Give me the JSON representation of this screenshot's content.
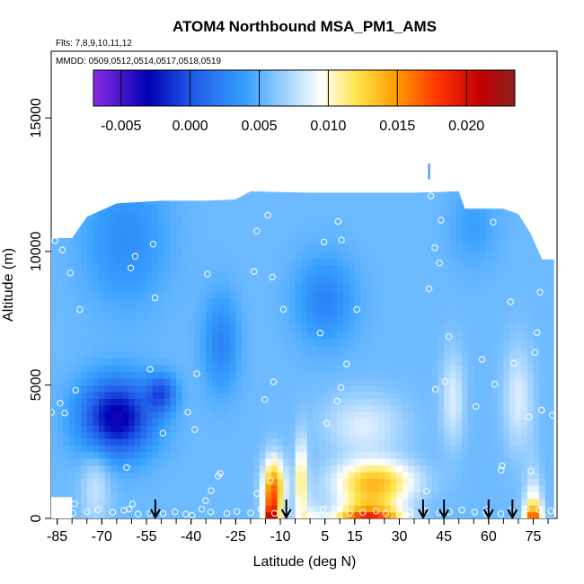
{
  "chart_data": {
    "type": "heatmap",
    "title": "ATOM4 Northbound MSA_PM1_AMS",
    "flights_note": "Flts: 7,8,9,10,11,12",
    "dates_note": "MMDD: 0509,0512,0514,0517,0518,0519",
    "xlabel": "Latitude (deg N)",
    "ylabel": "Altitude (m)",
    "xlim": [
      -87,
      83
    ],
    "ylim": [
      0,
      17500
    ],
    "x_ticks": [
      -85,
      -70,
      -55,
      -40,
      -25,
      -10,
      5,
      15,
      30,
      45,
      60,
      75
    ],
    "y_ticks": [
      0,
      5000,
      10000,
      15000
    ],
    "colorbar": {
      "range": [
        -0.007,
        0.0235
      ],
      "ticks": [
        -0.005,
        0.0,
        0.005,
        0.01,
        0.015,
        0.02
      ],
      "tick_labels": [
        "-0.005",
        "0.000",
        "0.005",
        "0.010",
        "0.015",
        "0.020"
      ],
      "colors": [
        "#8a2be2",
        "#0000b4",
        "#1f57e6",
        "#36a0ff",
        "#ffffff",
        "#ffe64d",
        "#ff9900",
        "#ff3300",
        "#c40000",
        "#8b2020"
      ]
    },
    "arrow_latitudes": [
      -52,
      -8,
      38,
      45,
      60,
      68
    ],
    "profile_sites": [
      {
        "lat": -80,
        "alt_min": 300,
        "alt_max": 10500
      },
      {
        "lat": -55,
        "alt_min": 100,
        "alt_max": 11800
      },
      {
        "lat": -35,
        "alt_min": 100,
        "alt_max": 11000
      },
      {
        "lat": -12,
        "alt_min": 100,
        "alt_max": 12200
      },
      {
        "lat": 10,
        "alt_min": 100,
        "alt_max": 11500
      },
      {
        "lat": 40,
        "alt_min": 100,
        "alt_max": 12200
      },
      {
        "lat": 62,
        "alt_min": 100,
        "alt_max": 11200
      },
      {
        "lat": 80,
        "alt_min": 300,
        "alt_max": 9300
      }
    ],
    "grid": false
  },
  "colors": {
    "frame": "#000000",
    "marker": "#ffffff",
    "arrow": "#000000"
  }
}
